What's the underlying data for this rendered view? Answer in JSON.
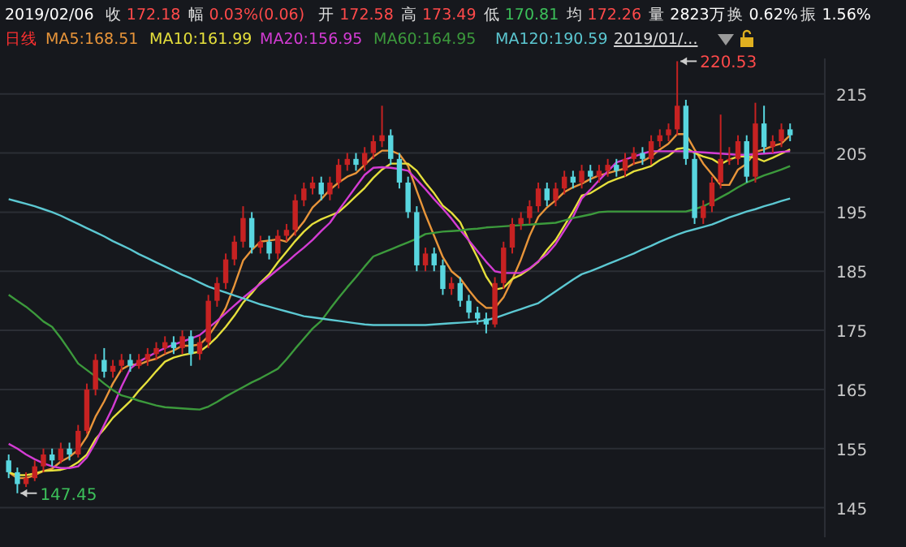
{
  "chart_data": {
    "type": "candlestick",
    "categories": [
      null,
      null,
      null,
      null,
      null,
      null,
      null,
      null,
      null,
      null,
      null,
      null,
      null,
      null,
      null,
      null,
      null,
      null,
      null,
      null,
      null,
      null,
      null,
      null,
      null,
      null,
      null,
      null,
      null,
      null,
      null,
      null,
      null,
      null,
      null,
      null,
      null,
      null,
      null,
      null,
      null,
      null,
      null,
      null,
      null,
      null,
      null,
      null,
      null,
      null,
      null,
      null,
      null,
      null,
      null,
      null,
      null,
      null,
      null,
      null,
      null,
      null,
      null,
      null,
      null,
      null,
      null,
      null,
      null,
      null,
      null,
      null,
      null,
      null,
      null,
      null,
      null,
      null,
      null,
      null,
      null,
      null,
      null,
      null,
      null,
      null,
      null,
      null,
      null,
      null,
      null
    ],
    "ohlc": [
      [
        153,
        154,
        150,
        151
      ],
      [
        151,
        151.8,
        147.45,
        149
      ],
      [
        149,
        151,
        148.5,
        150
      ],
      [
        150,
        153,
        149.5,
        152
      ],
      [
        152,
        155,
        151,
        154
      ],
      [
        154,
        155,
        152,
        153
      ],
      [
        153,
        156,
        152.5,
        155
      ],
      [
        155,
        156,
        153,
        154
      ],
      [
        154,
        159,
        153.5,
        158
      ],
      [
        158,
        166,
        157.5,
        165
      ],
      [
        165,
        171,
        164,
        170
      ],
      [
        170,
        172,
        167,
        168
      ],
      [
        168,
        170,
        167,
        169
      ],
      [
        169,
        171,
        168,
        170
      ],
      [
        170,
        171,
        168,
        169
      ],
      [
        169,
        171,
        168.5,
        170
      ],
      [
        170,
        172,
        169,
        171
      ],
      [
        171,
        173,
        170,
        172
      ],
      [
        172,
        174,
        171,
        173
      ],
      [
        173,
        174,
        171,
        172
      ],
      [
        172,
        175,
        171,
        174
      ],
      [
        174,
        175,
        169,
        171
      ],
      [
        171,
        174,
        170,
        173
      ],
      [
        173,
        181,
        172,
        180
      ],
      [
        180,
        184,
        179,
        183
      ],
      [
        183,
        188,
        182,
        187
      ],
      [
        187,
        191,
        186,
        190
      ],
      [
        190,
        196,
        189,
        194
      ],
      [
        194,
        195,
        188,
        189
      ],
      [
        189,
        191,
        188,
        190
      ],
      [
        190,
        191,
        187,
        188
      ],
      [
        188,
        192,
        187,
        191
      ],
      [
        191,
        193,
        190,
        192
      ],
      [
        192,
        198,
        191,
        197
      ],
      [
        197,
        200,
        196,
        199
      ],
      [
        199,
        201,
        198,
        200
      ],
      [
        200,
        201,
        197,
        198
      ],
      [
        198,
        201,
        197,
        200
      ],
      [
        200,
        204,
        199,
        203
      ],
      [
        203,
        205,
        202,
        204
      ],
      [
        204,
        205,
        202,
        203
      ],
      [
        203,
        206,
        202,
        205
      ],
      [
        205,
        208,
        204,
        207
      ],
      [
        207,
        213,
        206,
        208
      ],
      [
        208,
        209,
        203,
        204
      ],
      [
        204,
        205,
        199,
        200
      ],
      [
        200,
        201,
        194,
        195
      ],
      [
        195,
        196,
        185,
        186
      ],
      [
        186,
        189,
        185,
        188
      ],
      [
        188,
        189,
        185,
        186
      ],
      [
        186,
        187,
        181,
        182
      ],
      [
        182,
        184,
        181,
        183
      ],
      [
        183,
        184,
        179,
        180
      ],
      [
        180,
        181,
        177,
        178
      ],
      [
        178,
        179,
        176,
        177
      ],
      [
        177,
        178,
        174.5,
        176
      ],
      [
        176,
        184,
        175.5,
        183
      ],
      [
        183,
        190,
        182,
        189
      ],
      [
        189,
        194,
        188,
        193
      ],
      [
        193,
        195,
        192,
        194
      ],
      [
        194,
        197,
        193,
        196
      ],
      [
        196,
        200,
        195,
        199
      ],
      [
        199,
        200,
        196,
        197
      ],
      [
        197,
        200,
        196,
        199
      ],
      [
        199,
        202,
        198,
        201
      ],
      [
        201,
        202,
        199,
        200
      ],
      [
        200,
        203,
        199,
        202
      ],
      [
        202,
        203,
        200,
        201
      ],
      [
        201,
        203,
        200,
        202
      ],
      [
        202,
        204,
        201,
        203
      ],
      [
        203,
        204,
        201,
        202
      ],
      [
        202,
        205,
        201,
        204
      ],
      [
        204,
        206,
        203,
        205
      ],
      [
        205,
        206,
        203,
        204
      ],
      [
        204,
        208,
        203,
        207
      ],
      [
        207,
        209,
        206,
        208
      ],
      [
        208,
        210,
        207,
        209
      ],
      [
        209,
        220.53,
        208,
        213
      ],
      [
        213,
        214,
        203,
        204
      ],
      [
        204,
        205,
        193,
        194
      ],
      [
        194,
        197,
        193,
        196
      ],
      [
        196,
        201,
        195,
        200
      ],
      [
        200,
        211.5,
        199,
        204
      ],
      [
        204,
        206,
        203,
        204
      ],
      [
        204,
        208,
        203,
        207
      ],
      [
        207,
        208,
        200,
        201
      ],
      [
        201,
        213.5,
        200,
        210
      ],
      [
        210,
        213,
        205,
        206
      ],
      [
        206,
        208,
        205,
        207
      ],
      [
        207,
        210,
        206,
        209
      ],
      [
        209,
        210,
        207,
        208
      ]
    ],
    "series": [
      {
        "type": "line",
        "name": "MA5:168.51",
        "color": "#e8953a",
        "values": [
          151,
          150,
          150,
          150.5,
          151.2,
          151.6,
          152.8,
          153.6,
          154.8,
          157,
          160.4,
          163,
          166,
          168.4,
          169.2,
          169.2,
          169.8,
          170.2,
          171,
          171.6,
          172.4,
          172.4,
          172.6,
          174,
          176.2,
          178.8,
          182.6,
          186.8,
          188.6,
          190,
          190.2,
          190.4,
          190,
          191.6,
          193.4,
          195.8,
          197.2,
          198.8,
          200,
          201,
          201.6,
          203,
          204.4,
          205.4,
          205.4,
          204.8,
          202.8,
          198.6,
          194.6,
          191,
          187.4,
          185,
          183.8,
          181.8,
          180,
          178.8,
          178.8,
          180.6,
          183.6,
          187,
          191,
          194.2,
          195.8,
          197,
          198.4,
          199.2,
          199.8,
          200.6,
          201.2,
          201.6,
          202,
          202.4,
          203.2,
          203.6,
          204.4,
          205.6,
          206.6,
          208.2,
          208.2,
          205.6,
          203.2,
          201.4,
          199.6,
          199.6,
          202.2,
          203.2,
          205.2,
          205.6,
          206.2,
          206.6,
          208
        ]
      },
      {
        "type": "line",
        "name": "MA10:161.99",
        "color": "#e6e03c",
        "values": [
          151,
          150.5,
          150.5,
          150.8,
          151.2,
          151.3,
          151.4,
          151.8,
          152.7,
          154,
          156.6,
          158.3,
          160.2,
          161.6,
          163,
          164.8,
          166.4,
          168.1,
          169.7,
          170.4,
          170.8,
          171.1,
          171.4,
          172.5,
          173.9,
          175.6,
          177.5,
          179.7,
          181.3,
          183.1,
          184.5,
          186.5,
          188.3,
          190.1,
          191.7,
          193,
          193.8,
          194.4,
          195,
          196.3,
          197.7,
          199.1,
          200.8,
          202.2,
          203.2,
          203.2,
          203.2,
          202,
          200,
          198.2,
          196.1,
          194.9,
          193.3,
          190.2,
          187.3,
          184.1,
          181.9,
          182.2,
          183.7,
          184.4,
          185.4,
          186.6,
          188.6,
          190.3,
          192.7,
          195.1,
          197.8,
          198.2,
          199.1,
          200,
          200.6,
          201.1,
          201.9,
          202.3,
          202.8,
          203.8,
          204.5,
          205.7,
          205.9,
          205,
          204.4,
          204,
          203.1,
          203.9,
          204.4,
          204.4,
          204.2,
          203.6,
          204.2,
          204.9,
          205.6
        ]
      },
      {
        "type": "line",
        "name": "MA20:156.95",
        "color": "#d43cd4",
        "values": [
          155.8,
          155,
          154,
          153.2,
          152.5,
          152,
          151.7,
          151.7,
          152,
          153.5,
          156,
          159,
          162,
          165.5,
          168.5,
          169.7,
          170.5,
          171.3,
          172,
          172.6,
          173.1,
          173.6,
          174.2,
          175.4,
          176.6,
          177.9,
          179.2,
          180.5,
          181.7,
          182.9,
          184.1,
          185.3,
          186.5,
          187.8,
          189,
          190.3,
          191.8,
          193.2,
          195.3,
          197.3,
          199.3,
          201.3,
          202.5,
          202.6,
          202.5,
          202.3,
          202,
          200.5,
          198.9,
          197.2,
          195.6,
          193.9,
          192,
          190.2,
          188.4,
          186.6,
          185,
          184.7,
          184.7,
          184.7,
          185.5,
          186.7,
          187.9,
          189.6,
          191.9,
          194.2,
          197.3,
          198.8,
          200.4,
          201.9,
          203.4,
          203.9,
          204.4,
          204.9,
          205.3,
          205.3,
          205.3,
          205.3,
          205.3,
          205.2,
          205.1,
          205,
          204.9,
          204.8,
          204.7,
          204.7,
          204.8,
          204.9,
          205,
          205.2,
          205.3
        ]
      },
      {
        "type": "line",
        "name": "MA60:164.95",
        "color": "#3c9a3c",
        "values": [
          181,
          180,
          179,
          177.8,
          176.5,
          175.6,
          173.7,
          171.6,
          169.4,
          168.3,
          167.2,
          166,
          164.9,
          164,
          163.6,
          163.1,
          162.7,
          162.3,
          162,
          161.9,
          161.8,
          161.7,
          161.6,
          162.1,
          162.9,
          163.8,
          164.6,
          165.4,
          166.2,
          166.9,
          167.7,
          168.5,
          170.1,
          171.9,
          173.6,
          175.3,
          176.6,
          178.6,
          180.5,
          182.3,
          184,
          185.8,
          187.5,
          188.1,
          188.7,
          189.3,
          189.9,
          190.5,
          191.3,
          191.5,
          191.7,
          191.8,
          191.9,
          192.1,
          192.2,
          192.4,
          192.5,
          192.6,
          192.7,
          192.8,
          192.9,
          193,
          193.1,
          193.2,
          193.6,
          194,
          194.3,
          194.6,
          195,
          195.1,
          195.1,
          195.1,
          195.1,
          195.1,
          195.1,
          195.1,
          195.1,
          195.1,
          195.1,
          195.5,
          196,
          196.7,
          197.5,
          198.3,
          199.2,
          200,
          200.6,
          201.2,
          201.7,
          202.2,
          202.8
        ]
      },
      {
        "type": "line",
        "name": "MA120:190.59",
        "color": "#5cc8d2",
        "values": [
          197.2,
          196.8,
          196.4,
          196,
          195.5,
          195,
          194.4,
          193.7,
          193,
          192.3,
          191.6,
          190.9,
          190.1,
          189.4,
          188.7,
          187.9,
          187.2,
          186.5,
          185.8,
          185.1,
          184.4,
          183.8,
          183.1,
          182.4,
          181.9,
          181.4,
          180.9,
          180.4,
          179.9,
          179.4,
          179,
          178.6,
          178.2,
          177.8,
          177.4,
          177.2,
          177,
          176.8,
          176.6,
          176.4,
          176.2,
          176,
          175.9,
          175.9,
          175.9,
          175.9,
          175.9,
          175.9,
          175.9,
          176,
          176.1,
          176.2,
          176.3,
          176.4,
          176.5,
          176.7,
          177.1,
          177.6,
          178.1,
          178.6,
          179.1,
          179.6,
          180.6,
          181.6,
          182.6,
          183.6,
          184.5,
          185,
          185.6,
          186.2,
          186.8,
          187.4,
          188,
          188.7,
          189.3,
          190,
          190.6,
          191.2,
          191.7,
          192.1,
          192.5,
          192.9,
          193.5,
          194.1,
          194.6,
          195.1,
          195.5,
          196,
          196.4,
          196.9,
          197.3
        ]
      }
    ],
    "ylim": [
      140,
      221
    ],
    "yticks": [
      145,
      155,
      165,
      175,
      185,
      195,
      205,
      215
    ],
    "grid": "y",
    "legend": "top",
    "tick_labels": "y",
    "annotations": [
      "220.53",
      "147.45",
      "2019/02/06",
      "收 172.18",
      "幅 0.03%(0.06)",
      "开 172.58",
      "高 173.49",
      "低 170.81",
      "均 172.26",
      "量 2823万",
      "换 0.62%",
      "振 1.56%",
      "日线",
      "2019/01/..."
    ]
  }
}
